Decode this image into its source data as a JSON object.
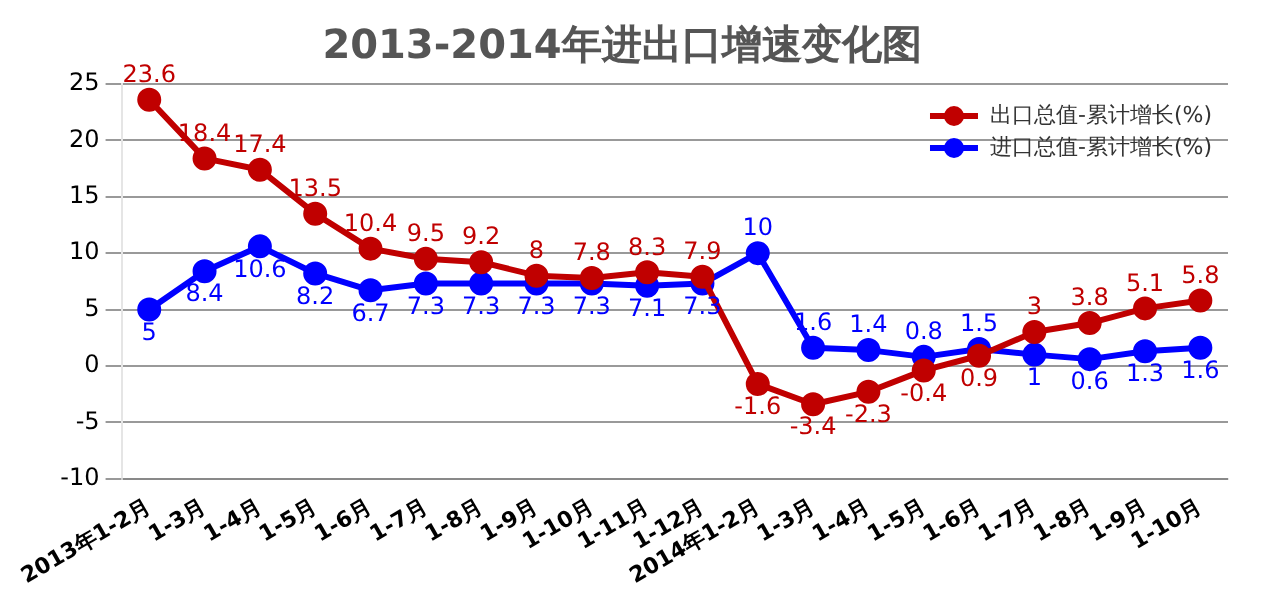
{
  "chart_data": {
    "type": "line",
    "title": "2013-2014年进出口增速变化图",
    "categories": [
      "2013年1-2月",
      "1-3月",
      "1-4月",
      "1-5月",
      "1-6月",
      "1-7月",
      "1-8月",
      "1-9月",
      "1-10月",
      "1-11月",
      "1-12月",
      "2014年1-2月",
      "1-3月",
      "1-4月",
      "1-5月",
      "1-6月",
      "1-7月",
      "1-8月",
      "1-9月",
      "1-10月"
    ],
    "series": [
      {
        "name": "出口总值-累计增长(%)",
        "color": "#c00000",
        "values": [
          23.6,
          18.4,
          17.4,
          13.5,
          10.4,
          9.5,
          9.2,
          8,
          7.8,
          8.3,
          7.9,
          -1.6,
          -3.4,
          -2.3,
          -0.4,
          0.9,
          3,
          3.8,
          5.1,
          5.8
        ]
      },
      {
        "name": "进口总值-累计增长(%)",
        "color": "#0000ff",
        "values": [
          5,
          8.4,
          10.6,
          8.2,
          6.7,
          7.3,
          7.3,
          7.3,
          7.3,
          7.1,
          7.3,
          10,
          1.6,
          1.4,
          0.8,
          1.5,
          1,
          0.6,
          1.3,
          1.6
        ]
      }
    ],
    "ylim": [
      -10,
      25
    ],
    "yticks": [
      -10,
      -5,
      0,
      5,
      10,
      15,
      20,
      25
    ],
    "grid": "y",
    "legend": "top right",
    "marker": "circle",
    "line_style": "solid",
    "data_labels": true
  }
}
